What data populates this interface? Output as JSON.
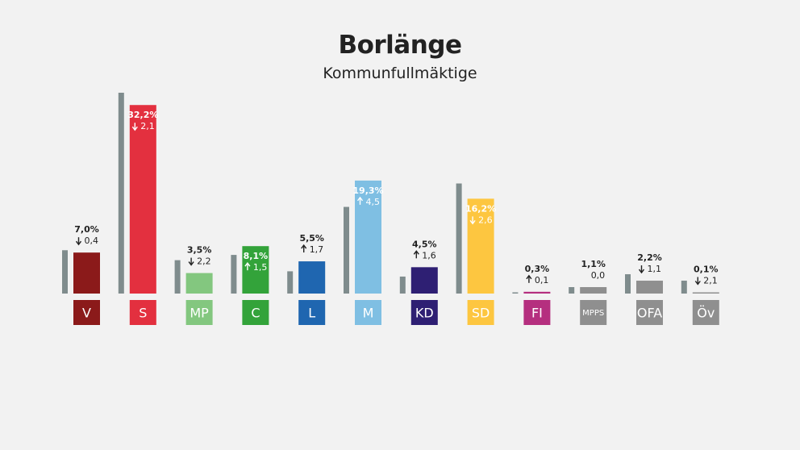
{
  "chart_data": {
    "type": "bar",
    "title": "Borlänge",
    "subtitle": "Kommunfullmäktige",
    "xlabel": "",
    "ylabel": "",
    "ylim": [
      0,
      35
    ],
    "grid": false,
    "categories": [
      "V",
      "S",
      "MP",
      "C",
      "L",
      "M",
      "KD",
      "SD",
      "FI",
      "MPPS",
      "OFA",
      "Öv"
    ],
    "series": [
      {
        "values": [
          7.4,
          34.3,
          5.7,
          6.6,
          3.8,
          14.8,
          2.9,
          18.8,
          0.2,
          1.1,
          3.3,
          2.2
        ],
        "color": "#7f8c8d"
      },
      {
        "values": [
          7.0,
          32.2,
          3.5,
          8.1,
          5.5,
          19.3,
          4.5,
          16.2,
          0.3,
          1.1,
          2.2,
          0.1
        ]
      }
    ],
    "value_labels": [
      "7,0%",
      "32,2%",
      "3,5%",
      "8,1%",
      "5,5%",
      "19,3%",
      "4,5%",
      "16,2%",
      "0,3%",
      "1,1%",
      "2,2%",
      "0,1%"
    ],
    "change_labels": [
      "0,4",
      "2,1",
      "2,2",
      "1,5",
      "1,7",
      "4,5",
      "1,6",
      "2,6",
      "0,1",
      "0,0",
      "1,1",
      "2,1"
    ],
    "change_direction": [
      "down",
      "down",
      "down",
      "up",
      "up",
      "up",
      "up",
      "down",
      "up",
      "none",
      "down",
      "down"
    ],
    "label_inside": [
      false,
      true,
      false,
      true,
      false,
      true,
      false,
      true,
      false,
      false,
      false,
      false
    ],
    "colors": [
      "#8b1a1a",
      "#e3303f",
      "#83c77f",
      "#33a33a",
      "#1f66b0",
      "#7fbfe3",
      "#2e1f73",
      "#fdc640",
      "#b52f7f",
      "#8f8f8f",
      "#8f8f8f",
      "#8f8f8f"
    ],
    "previous_color": "#7f8c8d",
    "category_text_color": "#ffffff"
  }
}
